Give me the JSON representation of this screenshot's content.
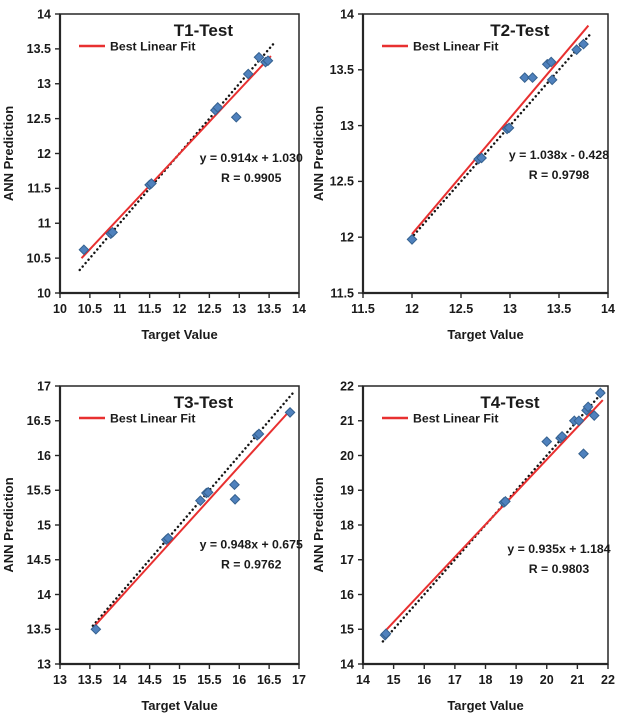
{
  "figure": {
    "background": "#ffffff",
    "colors": {
      "marker_fill": "#4f81bd",
      "marker_stroke": "#35618f",
      "fit_line": "#e83030",
      "identity_line": "#141414",
      "axis": "#262626",
      "text": "#1a1a1a"
    }
  },
  "chart_data": [
    {
      "type": "scatter",
      "title": "T1-Test",
      "xlabel": "Target Value",
      "ylabel": "ANN Prediction",
      "legend": "Best Linear Fit",
      "equation": "y = 0.914x + 1.030",
      "r_label": "R = 0.9905",
      "xlim": [
        10,
        14
      ],
      "ylim": [
        10,
        14
      ],
      "xticks": [
        10,
        10.5,
        11,
        11.5,
        12,
        12.5,
        13,
        13.5,
        14
      ],
      "yticks": [
        10,
        10.5,
        11,
        11.5,
        12,
        12.5,
        13,
        13.5,
        14
      ],
      "grid": false,
      "legend_position": "upper-left-inside",
      "fit": {
        "slope": 0.914,
        "intercept": 1.03,
        "x_range": [
          10.36,
          13.53
        ]
      },
      "identity_range": [
        10.33,
        13.57
      ],
      "points": [
        [
          10.4,
          10.62
        ],
        [
          10.85,
          10.85
        ],
        [
          10.88,
          10.87
        ],
        [
          11.5,
          11.55
        ],
        [
          11.53,
          11.57
        ],
        [
          12.6,
          12.62
        ],
        [
          12.64,
          12.66
        ],
        [
          12.95,
          12.52
        ],
        [
          13.15,
          13.14
        ],
        [
          13.33,
          13.38
        ],
        [
          13.44,
          13.31
        ],
        [
          13.48,
          13.33
        ]
      ]
    },
    {
      "type": "scatter",
      "title": "T2-Test",
      "xlabel": "Target Value",
      "ylabel": "ANN Prediction",
      "legend": "Best Linear Fit",
      "equation": "y = 1.038x - 0.428",
      "r_label": "R = 0.9798",
      "xlim": [
        11.5,
        14
      ],
      "ylim": [
        11.5,
        14
      ],
      "xticks": [
        11.5,
        12,
        12.5,
        13,
        13.5,
        14
      ],
      "yticks": [
        11.5,
        12,
        12.5,
        13,
        13.5,
        14
      ],
      "grid": false,
      "legend_position": "upper-left-inside",
      "fit": {
        "slope": 1.038,
        "intercept": -0.428,
        "x_range": [
          12.0,
          13.8
        ]
      },
      "identity_range": [
        11.99,
        13.83
      ],
      "points": [
        [
          12.0,
          11.98
        ],
        [
          12.68,
          12.7
        ],
        [
          12.71,
          12.71
        ],
        [
          12.97,
          12.97
        ],
        [
          12.99,
          12.98
        ],
        [
          13.15,
          13.43
        ],
        [
          13.23,
          13.43
        ],
        [
          13.38,
          13.55
        ],
        [
          13.42,
          13.57
        ],
        [
          13.43,
          13.41
        ],
        [
          13.68,
          13.68
        ],
        [
          13.75,
          13.73
        ]
      ]
    },
    {
      "type": "scatter",
      "title": "T3-Test",
      "xlabel": "Target Value",
      "ylabel": "ANN Prediction",
      "legend": "Best Linear Fit",
      "equation": "y = 0.948x + 0.675",
      "r_label": "R = 0.9762",
      "xlim": [
        13,
        17
      ],
      "ylim": [
        13,
        17
      ],
      "xticks": [
        13,
        13.5,
        14,
        14.5,
        15,
        15.5,
        16,
        16.5,
        17
      ],
      "yticks": [
        13,
        13.5,
        14,
        14.5,
        15,
        15.5,
        16,
        16.5,
        17
      ],
      "grid": false,
      "legend_position": "upper-left-inside",
      "fit": {
        "slope": 0.948,
        "intercept": 0.675,
        "x_range": [
          13.58,
          16.86
        ]
      },
      "identity_range": [
        13.55,
        16.92
      ],
      "points": [
        [
          13.6,
          13.5
        ],
        [
          14.78,
          14.79
        ],
        [
          14.81,
          14.81
        ],
        [
          15.35,
          15.35
        ],
        [
          15.45,
          15.46
        ],
        [
          15.48,
          15.47
        ],
        [
          15.92,
          15.58
        ],
        [
          15.93,
          15.37
        ],
        [
          16.3,
          16.29
        ],
        [
          16.33,
          16.31
        ],
        [
          16.85,
          16.62
        ]
      ]
    },
    {
      "type": "scatter",
      "title": "T4-Test",
      "xlabel": "Target Value",
      "ylabel": "ANN Prediction",
      "legend": "Best Linear Fit",
      "equation": "y = 0.935x + 1.184",
      "r_label": "R = 0.9803",
      "xlim": [
        14,
        22
      ],
      "ylim": [
        14,
        22
      ],
      "xticks": [
        14,
        15,
        16,
        17,
        18,
        19,
        20,
        21,
        22
      ],
      "yticks": [
        14,
        15,
        16,
        17,
        18,
        19,
        20,
        21,
        22
      ],
      "grid": false,
      "legend_position": "upper-left-inside",
      "fit": {
        "slope": 0.935,
        "intercept": 1.184,
        "x_range": [
          14.68,
          21.83
        ]
      },
      "identity_range": [
        14.65,
        21.85
      ],
      "points": [
        [
          14.72,
          14.83
        ],
        [
          14.75,
          14.87
        ],
        [
          18.6,
          18.65
        ],
        [
          18.65,
          18.68
        ],
        [
          20.0,
          20.4
        ],
        [
          20.45,
          20.5
        ],
        [
          20.5,
          20.55
        ],
        [
          20.9,
          21.0
        ],
        [
          21.05,
          21.0
        ],
        [
          21.2,
          20.05
        ],
        [
          21.3,
          21.3
        ],
        [
          21.35,
          21.4
        ],
        [
          21.55,
          21.15
        ],
        [
          21.75,
          21.8
        ]
      ]
    }
  ]
}
